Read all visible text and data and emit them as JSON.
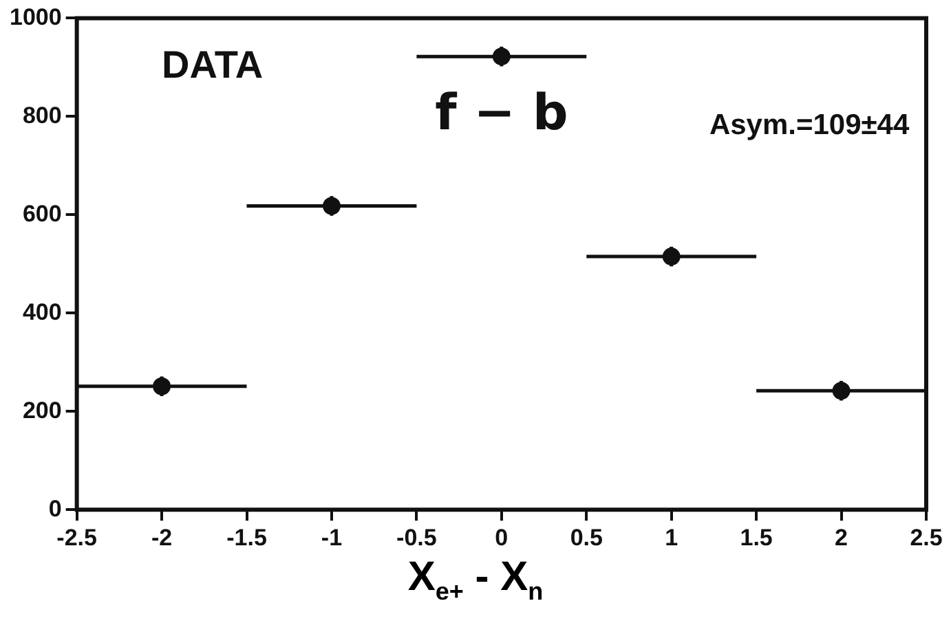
{
  "chart_data": {
    "type": "scatter",
    "xlabel": "X$_{e+}$ - X$_{n}$",
    "x": [
      -2,
      -1,
      0,
      1,
      2
    ],
    "values": [
      251,
      618,
      922,
      515,
      242
    ],
    "errors": [
      20,
      20,
      20,
      20,
      20
    ],
    "xerrors": [
      0.5,
      0.5,
      0.5,
      0.5,
      0.5
    ],
    "color": "#111111",
    "marker": "circle",
    "xlim": [
      -2.5,
      2.5
    ],
    "xticks": [
      -2.5,
      -2,
      -1.5,
      -1,
      -0.5,
      0,
      0.5,
      1,
      1.5,
      2,
      2.5
    ],
    "ylim": [
      0,
      1000
    ],
    "yticks": [
      0,
      200,
      400,
      600,
      800,
      1000
    ],
    "annotations": [
      "DATA",
      "f − b",
      "Asym.=109±44"
    ]
  }
}
